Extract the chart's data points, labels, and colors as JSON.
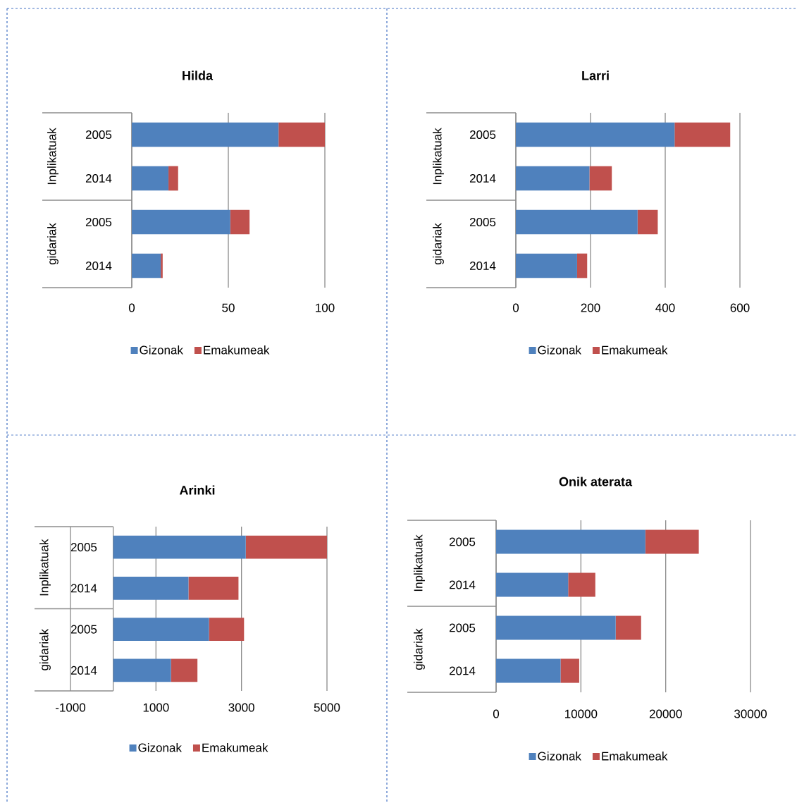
{
  "chart_data": [
    {
      "type": "bar",
      "orientation": "horizontal",
      "stacked": true,
      "title": "Hilda",
      "categories": [
        "2005",
        "2014",
        "2005",
        "2014"
      ],
      "annotations": [
        "Inplikatuak",
        "gidariak"
      ],
      "series": [
        {
          "name": "Gizonak",
          "color": "#4f81bd",
          "values": [
            76,
            19,
            51,
            15
          ]
        },
        {
          "name": "Emakumeak",
          "color": "#c0504d",
          "values": [
            24,
            5,
            10,
            1
          ]
        }
      ],
      "xlim": [
        0,
        100
      ],
      "xticks": [
        0,
        50,
        100
      ],
      "grid": "x",
      "legend": "bottom"
    },
    {
      "type": "bar",
      "orientation": "horizontal",
      "stacked": true,
      "title": "Larri",
      "categories": [
        "2005",
        "2014",
        "2005",
        "2014"
      ],
      "annotations": [
        "Inplikatuak",
        "gidariak"
      ],
      "series": [
        {
          "name": "Gizonak",
          "color": "#4f81bd",
          "values": [
            425,
            197,
            326,
            164
          ]
        },
        {
          "name": "Emakumeak",
          "color": "#c0504d",
          "values": [
            149,
            60,
            54,
            27
          ]
        }
      ],
      "xlim": [
        0,
        600
      ],
      "xticks": [
        0,
        200,
        400,
        600
      ],
      "grid": "x",
      "legend": "bottom"
    },
    {
      "type": "bar",
      "orientation": "horizontal",
      "stacked": true,
      "title": "Arinki",
      "categories": [
        "2005",
        "2014",
        "2005",
        "2014"
      ],
      "annotations": [
        "Inplikatuak",
        "gidariak"
      ],
      "series": [
        {
          "name": "Gizonak",
          "color": "#4f81bd",
          "values": [
            3100,
            1760,
            2240,
            1350
          ]
        },
        {
          "name": "Emakumeak",
          "color": "#c0504d",
          "values": [
            1900,
            1170,
            820,
            620
          ]
        }
      ],
      "xlim": [
        -1000,
        5000
      ],
      "xticks": [
        -1000,
        1000,
        3000,
        5000
      ],
      "grid": "x",
      "legend": "bottom"
    },
    {
      "type": "bar",
      "orientation": "horizontal",
      "stacked": true,
      "title": "Onik aterata",
      "categories": [
        "2005",
        "2014",
        "2005",
        "2014"
      ],
      "annotations": [
        "Inplikatuak",
        "gidariak"
      ],
      "series": [
        {
          "name": "Gizonak",
          "color": "#4f81bd",
          "values": [
            17600,
            8500,
            14100,
            7600
          ]
        },
        {
          "name": "Emakumeak",
          "color": "#c0504d",
          "values": [
            6300,
            3200,
            3000,
            2200
          ]
        }
      ],
      "xlim": [
        0,
        30000
      ],
      "xticks": [
        0,
        10000,
        20000,
        30000
      ],
      "grid": "x",
      "legend": "bottom"
    }
  ]
}
